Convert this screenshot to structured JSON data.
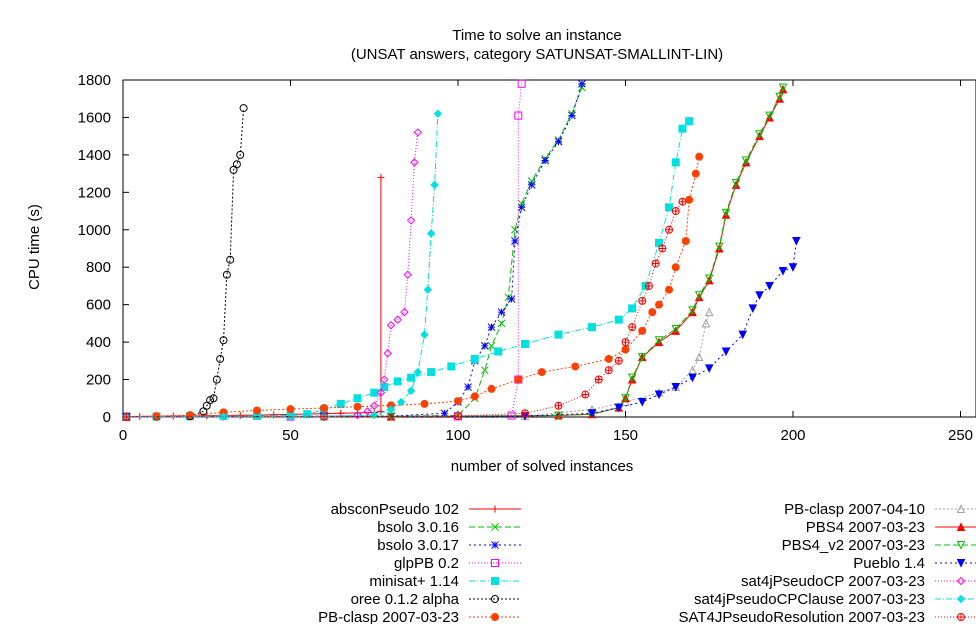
{
  "chart_data": {
    "type": "line",
    "title": "Time to solve an instance",
    "subtitle": "(UNSAT answers, category SATUNSAT-SMALLINT-LIN)",
    "xlabel": "number of solved instances",
    "ylabel": "CPU time (s)",
    "xlim": [
      0,
      250
    ],
    "ylim": [
      0,
      1800
    ],
    "xticks": [
      0,
      50,
      100,
      150,
      200,
      250
    ],
    "yticks": [
      0,
      200,
      400,
      600,
      800,
      1000,
      1200,
      1400,
      1600,
      1800
    ],
    "grid": false,
    "legend_position": "bottom",
    "series": [
      {
        "name": "absconPseudo 102",
        "color": "#ff0000",
        "marker": "plus",
        "dash": "",
        "points": [
          [
            1,
            2
          ],
          [
            5,
            3
          ],
          [
            10,
            4
          ],
          [
            15,
            5
          ],
          [
            20,
            6
          ],
          [
            25,
            7
          ],
          [
            30,
            8
          ],
          [
            35,
            9
          ],
          [
            40,
            10
          ],
          [
            45,
            12
          ],
          [
            50,
            14
          ],
          [
            55,
            16
          ],
          [
            60,
            18
          ],
          [
            65,
            20
          ],
          [
            70,
            22
          ],
          [
            75,
            24
          ],
          [
            77,
            30
          ],
          [
            77,
            1280
          ]
        ]
      },
      {
        "name": "bsolo 3.0.16",
        "color": "#00c000",
        "marker": "x",
        "dash": "6,3",
        "points": [
          [
            1,
            1
          ],
          [
            20,
            2
          ],
          [
            40,
            3
          ],
          [
            60,
            4
          ],
          [
            80,
            5
          ],
          [
            100,
            8
          ],
          [
            105,
            100
          ],
          [
            108,
            250
          ],
          [
            110,
            380
          ],
          [
            113,
            500
          ],
          [
            115,
            640
          ],
          [
            117,
            1000
          ],
          [
            119,
            1140
          ],
          [
            122,
            1260
          ],
          [
            126,
            1380
          ],
          [
            130,
            1480
          ],
          [
            134,
            1620
          ],
          [
            137,
            1760
          ]
        ]
      },
      {
        "name": "bsolo 3.0.17",
        "color": "#0000ff",
        "marker": "asterisk",
        "dash": "2,3",
        "points": [
          [
            1,
            1
          ],
          [
            20,
            2
          ],
          [
            40,
            3
          ],
          [
            60,
            4
          ],
          [
            80,
            5
          ],
          [
            96,
            20
          ],
          [
            100,
            80
          ],
          [
            103,
            160
          ],
          [
            105,
            300
          ],
          [
            108,
            380
          ],
          [
            110,
            480
          ],
          [
            113,
            560
          ],
          [
            116,
            630
          ],
          [
            117,
            940
          ],
          [
            119,
            1120
          ],
          [
            122,
            1240
          ],
          [
            126,
            1370
          ],
          [
            130,
            1470
          ],
          [
            134,
            1610
          ],
          [
            137,
            1780
          ]
        ]
      },
      {
        "name": "glpPB 0.2",
        "color": "#ff00ff",
        "marker": "square",
        "dash": "1,2",
        "points": [
          [
            1,
            1
          ],
          [
            50,
            2
          ],
          [
            100,
            3
          ],
          [
            116,
            8
          ],
          [
            118,
            200
          ],
          [
            118,
            1610
          ],
          [
            119,
            1780
          ]
        ]
      },
      {
        "name": "minisat+ 1.14",
        "color": "#00e0e0",
        "marker": "square-filled",
        "dash": "6,2,1,2",
        "points": [
          [
            1,
            2
          ],
          [
            10,
            3
          ],
          [
            20,
            4
          ],
          [
            30,
            5
          ],
          [
            40,
            6
          ],
          [
            50,
            8
          ],
          [
            55,
            15
          ],
          [
            60,
            40
          ],
          [
            65,
            70
          ],
          [
            70,
            100
          ],
          [
            75,
            130
          ],
          [
            78,
            160
          ],
          [
            82,
            190
          ],
          [
            86,
            210
          ],
          [
            92,
            240
          ],
          [
            98,
            270
          ],
          [
            105,
            310
          ],
          [
            112,
            350
          ],
          [
            120,
            390
          ],
          [
            130,
            440
          ],
          [
            140,
            480
          ],
          [
            148,
            520
          ],
          [
            152,
            580
          ],
          [
            156,
            700
          ],
          [
            160,
            930
          ],
          [
            163,
            1120
          ],
          [
            165,
            1360
          ],
          [
            167,
            1540
          ],
          [
            169,
            1580
          ]
        ]
      },
      {
        "name": "oree 0.1.2 alpha",
        "color": "#000000",
        "marker": "circle",
        "dash": "2,2",
        "points": [
          [
            1,
            1
          ],
          [
            10,
            2
          ],
          [
            20,
            4
          ],
          [
            24,
            30
          ],
          [
            25,
            60
          ],
          [
            26,
            90
          ],
          [
            27,
            100
          ],
          [
            28,
            200
          ],
          [
            29,
            310
          ],
          [
            30,
            410
          ],
          [
            31,
            760
          ],
          [
            32,
            840
          ],
          [
            33,
            1320
          ],
          [
            34,
            1350
          ],
          [
            35,
            1400
          ],
          [
            36,
            1650
          ]
        ]
      },
      {
        "name": "PB-clasp 2007-03-23",
        "color": "#ff4000",
        "marker": "circle-filled",
        "dash": "2,2",
        "points": [
          [
            1,
            2
          ],
          [
            10,
            5
          ],
          [
            20,
            10
          ],
          [
            30,
            25
          ],
          [
            40,
            35
          ],
          [
            50,
            42
          ],
          [
            60,
            48
          ],
          [
            70,
            55
          ],
          [
            80,
            62
          ],
          [
            90,
            70
          ],
          [
            100,
            85
          ],
          [
            105,
            110
          ],
          [
            110,
            150
          ],
          [
            118,
            200
          ],
          [
            125,
            240
          ],
          [
            135,
            270
          ],
          [
            145,
            310
          ],
          [
            150,
            360
          ],
          [
            155,
            460
          ],
          [
            158,
            560
          ],
          [
            160,
            600
          ],
          [
            163,
            680
          ],
          [
            165,
            800
          ],
          [
            168,
            940
          ],
          [
            169,
            1160
          ],
          [
            171,
            1300
          ],
          [
            172,
            1390
          ]
        ]
      },
      {
        "name": "PB-clasp 2007-04-10",
        "color": "#a0a0a0",
        "marker": "triangle",
        "dash": "2,2",
        "points": [
          [
            1,
            1
          ],
          [
            60,
            2
          ],
          [
            120,
            5
          ],
          [
            140,
            40
          ],
          [
            150,
            80
          ],
          [
            160,
            130
          ],
          [
            165,
            160
          ],
          [
            170,
            250
          ],
          [
            172,
            320
          ],
          [
            174,
            500
          ],
          [
            175,
            560
          ]
        ]
      },
      {
        "name": "PBS4 2007-03-23",
        "color": "#ff0000",
        "marker": "triangle-filled",
        "dash": "",
        "points": [
          [
            1,
            1
          ],
          [
            80,
            2
          ],
          [
            130,
            8
          ],
          [
            140,
            15
          ],
          [
            148,
            50
          ],
          [
            150,
            100
          ],
          [
            152,
            200
          ],
          [
            155,
            320
          ],
          [
            160,
            400
          ],
          [
            165,
            460
          ],
          [
            170,
            560
          ],
          [
            172,
            640
          ],
          [
            175,
            730
          ],
          [
            178,
            900
          ],
          [
            180,
            1080
          ],
          [
            183,
            1240
          ],
          [
            186,
            1360
          ],
          [
            190,
            1500
          ],
          [
            193,
            1600
          ],
          [
            196,
            1700
          ],
          [
            197,
            1750
          ]
        ]
      },
      {
        "name": "PBS4_v2 2007-03-23",
        "color": "#00c000",
        "marker": "triangle-down",
        "dash": "6,3",
        "points": [
          [
            1,
            1
          ],
          [
            80,
            2
          ],
          [
            130,
            8
          ],
          [
            140,
            15
          ],
          [
            148,
            50
          ],
          [
            150,
            100
          ],
          [
            152,
            210
          ],
          [
            155,
            320
          ],
          [
            160,
            410
          ],
          [
            165,
            470
          ],
          [
            170,
            570
          ],
          [
            172,
            650
          ],
          [
            175,
            740
          ],
          [
            178,
            910
          ],
          [
            180,
            1090
          ],
          [
            183,
            1250
          ],
          [
            186,
            1370
          ],
          [
            190,
            1510
          ],
          [
            193,
            1610
          ],
          [
            196,
            1710
          ],
          [
            197,
            1760
          ]
        ]
      },
      {
        "name": "Pueblo 1.4",
        "color": "#0000ff",
        "marker": "triangle-down-filled",
        "dash": "2,3",
        "points": [
          [
            1,
            1
          ],
          [
            60,
            2
          ],
          [
            120,
            5
          ],
          [
            140,
            20
          ],
          [
            148,
            50
          ],
          [
            155,
            80
          ],
          [
            160,
            120
          ],
          [
            165,
            160
          ],
          [
            170,
            210
          ],
          [
            175,
            260
          ],
          [
            180,
            350
          ],
          [
            185,
            440
          ],
          [
            188,
            580
          ],
          [
            190,
            650
          ],
          [
            193,
            700
          ],
          [
            197,
            780
          ],
          [
            200,
            800
          ],
          [
            201,
            940
          ]
        ]
      },
      {
        "name": "sat4jPseudoCP 2007-03-23",
        "color": "#ff00ff",
        "marker": "diamond",
        "dash": "1,2",
        "points": [
          [
            1,
            1
          ],
          [
            30,
            2
          ],
          [
            60,
            5
          ],
          [
            70,
            10
          ],
          [
            73,
            30
          ],
          [
            75,
            60
          ],
          [
            77,
            130
          ],
          [
            78,
            200
          ],
          [
            79,
            340
          ],
          [
            80,
            490
          ],
          [
            82,
            520
          ],
          [
            84,
            560
          ],
          [
            85,
            760
          ],
          [
            86,
            1050
          ],
          [
            87,
            1360
          ],
          [
            88,
            1520
          ]
        ]
      },
      {
        "name": "sat4jPseudoCPClause 2007-03-23",
        "color": "#00e0e0",
        "marker": "diamond-filled",
        "dash": "6,2,1,2",
        "points": [
          [
            1,
            1
          ],
          [
            30,
            2
          ],
          [
            60,
            4
          ],
          [
            75,
            10
          ],
          [
            80,
            40
          ],
          [
            83,
            80
          ],
          [
            86,
            140
          ],
          [
            88,
            240
          ],
          [
            90,
            440
          ],
          [
            91,
            680
          ],
          [
            92,
            980
          ],
          [
            93,
            1240
          ],
          [
            94,
            1620
          ]
        ]
      },
      {
        "name": "SAT4JPseudoResolution 2007-03-23",
        "color": "#ff0000",
        "marker": "circle-plus",
        "dash": "1,2",
        "points": [
          [
            1,
            1
          ],
          [
            60,
            2
          ],
          [
            100,
            5
          ],
          [
            120,
            20
          ],
          [
            130,
            60
          ],
          [
            138,
            120
          ],
          [
            142,
            200
          ],
          [
            145,
            250
          ],
          [
            148,
            300
          ],
          [
            150,
            400
          ],
          [
            152,
            480
          ],
          [
            155,
            620
          ],
          [
            157,
            700
          ],
          [
            159,
            820
          ],
          [
            161,
            900
          ],
          [
            163,
            1000
          ],
          [
            165,
            1100
          ],
          [
            167,
            1150
          ]
        ]
      }
    ]
  }
}
